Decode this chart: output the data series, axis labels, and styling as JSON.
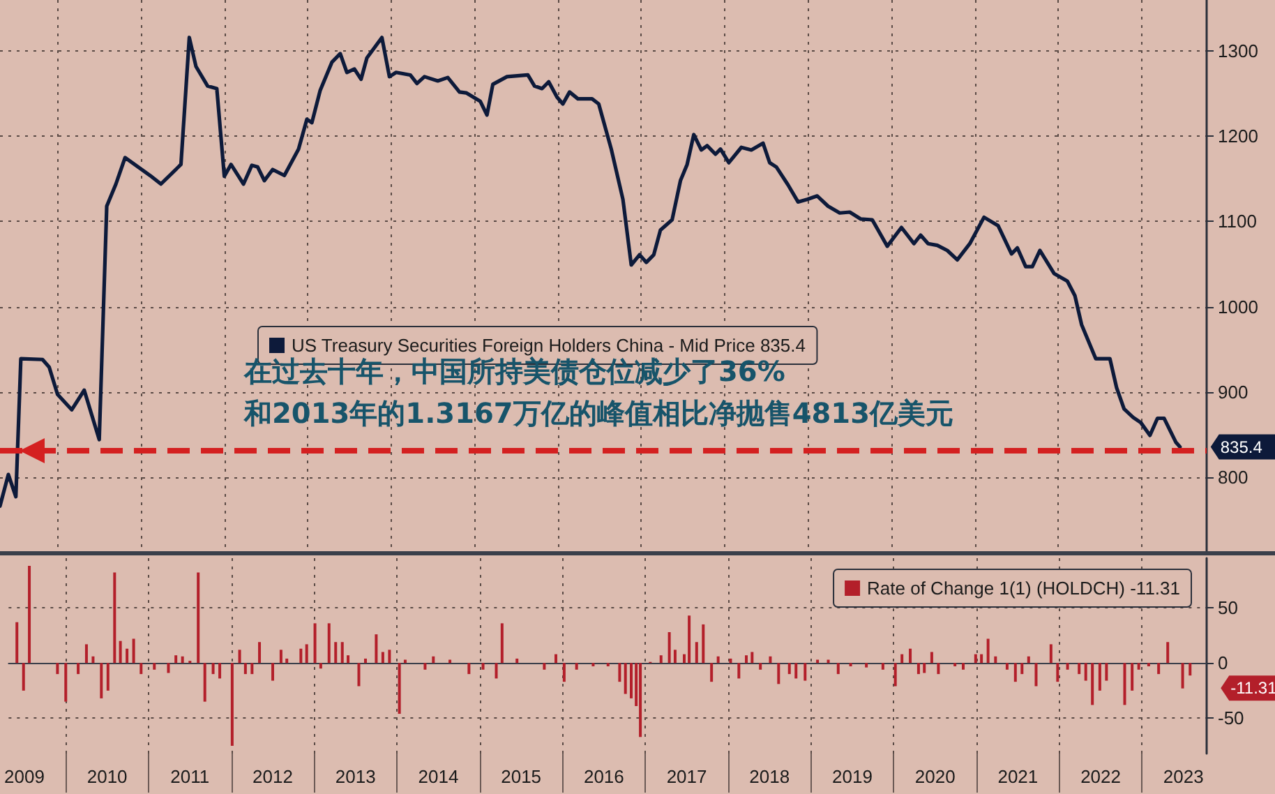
{
  "chart_data": [
    {
      "type": "line",
      "x": [
        2009.31,
        2009.41,
        2009.5,
        2009.56,
        2009.82,
        2009.9,
        2010.0,
        2010.17,
        2010.32,
        2010.5,
        2010.59,
        2010.7,
        2010.81,
        2011.11,
        2011.24,
        2011.48,
        2011.58,
        2011.66,
        2011.8,
        2011.91,
        2012.0,
        2012.08,
        2012.23,
        2012.33,
        2012.4,
        2012.48,
        2012.58,
        2012.72,
        2012.89,
        2012.99,
        2013.05,
        2013.15,
        2013.29,
        2013.39,
        2013.47,
        2013.56,
        2013.64,
        2013.71,
        2013.89,
        2013.98,
        2014.06,
        2014.23,
        2014.31,
        2014.4,
        2014.56,
        2014.68,
        2014.82,
        2014.9,
        2015.07,
        2015.15,
        2015.22,
        2015.39,
        2015.64,
        2015.72,
        2015.81,
        2015.89,
        2015.99,
        2016.06,
        2016.14,
        2016.24,
        2016.41,
        2016.49,
        2016.64,
        2016.78,
        2016.88,
        2016.98,
        2017.06,
        2017.15,
        2017.23,
        2017.37,
        2017.47,
        2017.55,
        2017.63,
        2017.72,
        2017.79,
        2017.89,
        2017.95,
        2018.05,
        2018.2,
        2018.32,
        2018.46,
        2018.54,
        2018.62,
        2018.76,
        2018.88,
        2018.99,
        2019.11,
        2019.24,
        2019.38,
        2019.5,
        2019.63,
        2019.77,
        2019.95,
        2020.12,
        2020.27,
        2020.35,
        2020.44,
        2020.55,
        2020.67,
        2020.79,
        2020.94,
        2021.11,
        2021.28,
        2021.44,
        2021.51,
        2021.61,
        2021.69,
        2021.78,
        2021.95,
        2022.11,
        2022.2,
        2022.28,
        2022.45,
        2022.62,
        2022.7,
        2022.79,
        2022.9,
        2022.99,
        2023.1,
        2023.19,
        2023.27,
        2023.41,
        2023.46
      ],
      "series": [
        {
          "name": "US Treasury Securities Foreign Holders China - Mid Price 835.4",
          "color": "#0d1a3a",
          "values": [
            766,
            803,
            777,
            939,
            938,
            929,
            897,
            879,
            902,
            844,
            1118,
            1144,
            1175,
            1154,
            1144,
            1167,
            1316,
            1282,
            1259,
            1256,
            1153,
            1167,
            1144,
            1166,
            1164,
            1148,
            1161,
            1154,
            1185,
            1220,
            1216,
            1254,
            1287,
            1297,
            1275,
            1279,
            1267,
            1292,
            1316,
            1270,
            1275,
            1272,
            1262,
            1270,
            1265,
            1269,
            1252,
            1251,
            1241,
            1225,
            1261,
            1270,
            1272,
            1259,
            1256,
            1264,
            1246,
            1238,
            1252,
            1244,
            1244,
            1238,
            1185,
            1126,
            1049,
            1061,
            1052,
            1061,
            1090,
            1102,
            1148,
            1167,
            1202,
            1184,
            1189,
            1179,
            1185,
            1169,
            1187,
            1184,
            1192,
            1169,
            1164,
            1143,
            1123,
            1126,
            1130,
            1118,
            1110,
            1111,
            1103,
            1102,
            1071,
            1093,
            1074,
            1084,
            1074,
            1072,
            1066,
            1055,
            1074,
            1105,
            1095,
            1062,
            1069,
            1047,
            1047,
            1066,
            1039,
            1030,
            1013,
            979,
            939,
            939,
            905,
            880,
            870,
            864,
            849,
            869,
            869,
            841,
            835.4
          ]
        }
      ],
      "xlim": [
        2009.31,
        2023.78
      ],
      "xticks": [
        {
          "value": 2010,
          "label": null
        },
        {
          "value": 2011,
          "label": null
        },
        {
          "value": 2012,
          "label": null
        },
        {
          "value": 2013,
          "label": null
        },
        {
          "value": 2014,
          "label": null
        },
        {
          "value": 2015,
          "label": null
        },
        {
          "value": 2016,
          "label": null
        },
        {
          "value": 2017,
          "label": null
        },
        {
          "value": 2018,
          "label": null
        },
        {
          "value": 2019,
          "label": null
        },
        {
          "value": 2020,
          "label": null
        },
        {
          "value": 2021,
          "label": null
        },
        {
          "value": 2022,
          "label": null
        },
        {
          "value": 2023,
          "label": null
        }
      ],
      "ylim": [
        713,
        1360
      ],
      "yticks": [
        800,
        900,
        1000,
        1100,
        1200,
        1300
      ],
      "tick_labels": "y",
      "grid": true,
      "legend": "center",
      "line_style": "solid",
      "ref_lines": [
        {
          "axis": "y",
          "value": 831,
          "color": "#d42020",
          "line_style": "dashed"
        }
      ],
      "annotations": [
        "在过去十年，中国所持美债仓位减少了36%",
        "和2013年的1.3167万亿的峰值相比净抛售4813亿美元",
        {
          "text": "835.4",
          "x": 2023.46,
          "y": 835.4
        }
      ]
    },
    {
      "type": "bar",
      "x": [
        2009.41,
        2009.49,
        2009.56,
        2009.9,
        2010.0,
        2010.15,
        2010.25,
        2010.33,
        2010.43,
        2010.51,
        2010.59,
        2010.66,
        2010.74,
        2010.82,
        2010.91,
        2011.07,
        2011.24,
        2011.33,
        2011.41,
        2011.5,
        2011.6,
        2011.68,
        2011.78,
        2011.86,
        2012.01,
        2012.1,
        2012.17,
        2012.25,
        2012.34,
        2012.5,
        2012.6,
        2012.67,
        2012.84,
        2012.91,
        2013.01,
        2013.08,
        2013.18,
        2013.26,
        2013.34,
        2013.41,
        2013.54,
        2013.62,
        2013.75,
        2013.83,
        2013.91,
        2014.03,
        2014.1,
        2014.34,
        2014.44,
        2014.64,
        2014.87,
        2015.04,
        2015.2,
        2015.27,
        2015.45,
        2015.78,
        2015.92,
        2016.02,
        2016.17,
        2016.37,
        2016.55,
        2016.69,
        2016.76,
        2016.83,
        2016.89,
        2016.94,
        2017.06,
        2017.19,
        2017.29,
        2017.36,
        2017.47,
        2017.53,
        2017.62,
        2017.7,
        2017.8,
        2017.88,
        2018.03,
        2018.13,
        2018.22,
        2018.29,
        2018.39,
        2018.51,
        2018.61,
        2018.74,
        2018.82,
        2018.93,
        2019.08,
        2019.21,
        2019.33,
        2019.48,
        2019.67,
        2019.87,
        2020.02,
        2020.1,
        2020.2,
        2020.3,
        2020.37,
        2020.46,
        2020.54,
        2020.74,
        2020.84,
        2020.99,
        2021.06,
        2021.14,
        2021.23,
        2021.37,
        2021.47,
        2021.55,
        2021.63,
        2021.72,
        2021.9,
        2021.98,
        2022.1,
        2022.24,
        2022.32,
        2022.4,
        2022.49,
        2022.57,
        2022.79,
        2022.88,
        2022.96,
        2023.08,
        2023.2,
        2023.31,
        2023.4,
        2023.49,
        2023.58
      ],
      "series": [
        {
          "name": "Rate of Change 1(1) (HOLDCH) -11.31",
          "color": "#b31f2a",
          "values": [
            37,
            -25,
            88,
            -10,
            -35,
            -10,
            17,
            6,
            -32,
            -25,
            82,
            20,
            13,
            22,
            -10,
            -6,
            -9,
            7,
            6,
            2,
            82,
            -35,
            -10,
            -14,
            -75,
            12,
            -10,
            -10,
            19,
            -16,
            12,
            4,
            13,
            17,
            36,
            -5,
            36,
            19,
            19,
            7,
            -21,
            4,
            26,
            10,
            12,
            -46,
            3,
            -6,
            6,
            3,
            -10,
            -6,
            -14,
            36,
            4,
            -6,
            8,
            -17,
            -6,
            -3,
            -3,
            -17,
            -28,
            -32,
            -39,
            -67,
            1,
            7,
            28,
            12,
            8,
            43,
            19,
            35,
            -17,
            6,
            4,
            -14,
            7,
            10,
            -6,
            6,
            -19,
            -10,
            -14,
            -16,
            3,
            3,
            -10,
            -3,
            -4,
            -6,
            -21,
            8,
            13,
            -10,
            -9,
            10,
            -10,
            -3,
            -6,
            8,
            8,
            22,
            6,
            -6,
            -17,
            -10,
            6,
            -21,
            17,
            -17,
            -6,
            -10,
            -16,
            -38,
            -25,
            -16,
            -38,
            -25,
            -6,
            -3,
            -10,
            19,
            0,
            -23,
            -11.31
          ]
        }
      ],
      "xlim": [
        2009.31,
        2023.78
      ],
      "xticks": [
        {
          "value": 2009.5,
          "label": "2009"
        },
        {
          "value": 2010,
          "label": null
        },
        {
          "value": 2010.5,
          "label": "2010"
        },
        {
          "value": 2011,
          "label": null
        },
        {
          "value": 2011.5,
          "label": "2011"
        },
        {
          "value": 2012,
          "label": null
        },
        {
          "value": 2012.5,
          "label": "2012"
        },
        {
          "value": 2013,
          "label": null
        },
        {
          "value": 2013.5,
          "label": "2013"
        },
        {
          "value": 2014,
          "label": null
        },
        {
          "value": 2014.5,
          "label": "2014"
        },
        {
          "value": 2015,
          "label": null
        },
        {
          "value": 2015.5,
          "label": "2015"
        },
        {
          "value": 2016,
          "label": null
        },
        {
          "value": 2016.5,
          "label": "2016"
        },
        {
          "value": 2017,
          "label": null
        },
        {
          "value": 2017.5,
          "label": "2017"
        },
        {
          "value": 2018,
          "label": null
        },
        {
          "value": 2018.5,
          "label": "2018"
        },
        {
          "value": 2019,
          "label": null
        },
        {
          "value": 2019.5,
          "label": "2019"
        },
        {
          "value": 2020,
          "label": null
        },
        {
          "value": 2020.5,
          "label": "2020"
        },
        {
          "value": 2021,
          "label": null
        },
        {
          "value": 2021.5,
          "label": "2021"
        },
        {
          "value": 2022,
          "label": null
        },
        {
          "value": 2022.5,
          "label": "2022"
        },
        {
          "value": 2023,
          "label": null
        },
        {
          "value": 2023.5,
          "label": "2023"
        }
      ],
      "ylim": [
        -82,
        95
      ],
      "yticks": [
        -50,
        0,
        50
      ],
      "grid": true,
      "legend": "top right",
      "annotations": [
        {
          "text": "-11.31",
          "x": 2023.58,
          "y": -11.31
        }
      ]
    }
  ]
}
